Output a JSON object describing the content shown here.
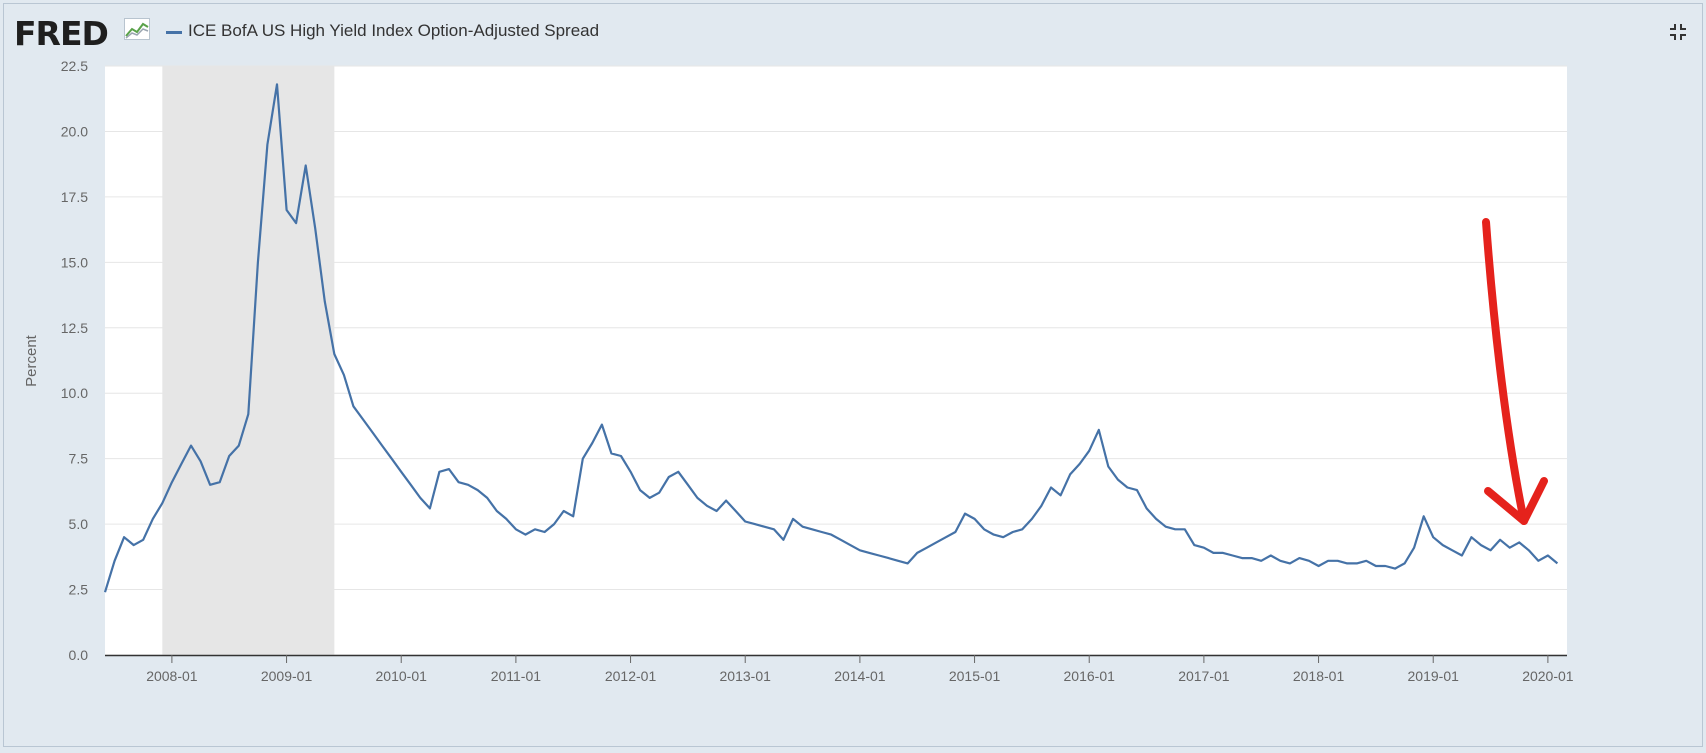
{
  "header": {
    "logo_text": "FRED",
    "logo_icon": "chart-line-icon",
    "fullscreen_icon": "fullscreen-icon"
  },
  "colors": {
    "series": "#4572a7",
    "recession": "#e6e6e6",
    "grid": "#e6e6e6",
    "annotation": "#e5221c"
  },
  "chart_data": {
    "type": "line",
    "title": "",
    "xlabel": "",
    "ylabel": "Percent",
    "ylim": [
      0,
      22.5
    ],
    "yticks": [
      "0.0",
      "2.5",
      "5.0",
      "7.5",
      "10.0",
      "12.5",
      "15.0",
      "17.5",
      "20.0",
      "22.5"
    ],
    "xlim": [
      "2007-06",
      "2020-03"
    ],
    "xticks": [
      "2008-01",
      "2009-01",
      "2010-01",
      "2011-01",
      "2012-01",
      "2013-01",
      "2014-01",
      "2015-01",
      "2016-01",
      "2017-01",
      "2018-01",
      "2019-01",
      "2020-01"
    ],
    "grid": true,
    "legend": "top-left",
    "recession_shading": {
      "start": "2007-12",
      "end": "2009-06"
    },
    "series": [
      {
        "name": "ICE BofA US High Yield Index Option-Adjusted Spread",
        "points": [
          [
            "2007-06",
            2.4
          ],
          [
            "2007-07",
            3.6
          ],
          [
            "2007-08",
            4.5
          ],
          [
            "2007-09",
            4.2
          ],
          [
            "2007-10",
            4.4
          ],
          [
            "2007-11",
            5.2
          ],
          [
            "2007-12",
            5.8
          ],
          [
            "2008-01",
            6.6
          ],
          [
            "2008-02",
            7.3
          ],
          [
            "2008-03",
            8.0
          ],
          [
            "2008-04",
            7.4
          ],
          [
            "2008-05",
            6.5
          ],
          [
            "2008-06",
            6.6
          ],
          [
            "2008-07",
            7.6
          ],
          [
            "2008-08",
            8.0
          ],
          [
            "2008-09",
            9.2
          ],
          [
            "2008-10",
            15.0
          ],
          [
            "2008-11",
            19.5
          ],
          [
            "2008-12",
            21.8
          ],
          [
            "2009-01",
            17.0
          ],
          [
            "2009-02",
            16.5
          ],
          [
            "2009-03",
            18.7
          ],
          [
            "2009-04",
            16.3
          ],
          [
            "2009-05",
            13.5
          ],
          [
            "2009-06",
            11.5
          ],
          [
            "2009-07",
            10.7
          ],
          [
            "2009-08",
            9.5
          ],
          [
            "2009-09",
            9.0
          ],
          [
            "2009-10",
            8.5
          ],
          [
            "2009-11",
            8.0
          ],
          [
            "2009-12",
            7.5
          ],
          [
            "2010-01",
            7.0
          ],
          [
            "2010-02",
            6.5
          ],
          [
            "2010-03",
            6.0
          ],
          [
            "2010-04",
            5.6
          ],
          [
            "2010-05",
            7.0
          ],
          [
            "2010-06",
            7.1
          ],
          [
            "2010-07",
            6.6
          ],
          [
            "2010-08",
            6.5
          ],
          [
            "2010-09",
            6.3
          ],
          [
            "2010-10",
            6.0
          ],
          [
            "2010-11",
            5.5
          ],
          [
            "2010-12",
            5.2
          ],
          [
            "2011-01",
            4.8
          ],
          [
            "2011-02",
            4.6
          ],
          [
            "2011-03",
            4.8
          ],
          [
            "2011-04",
            4.7
          ],
          [
            "2011-05",
            5.0
          ],
          [
            "2011-06",
            5.5
          ],
          [
            "2011-07",
            5.3
          ],
          [
            "2011-08",
            7.5
          ],
          [
            "2011-09",
            8.1
          ],
          [
            "2011-10",
            8.8
          ],
          [
            "2011-11",
            7.7
          ],
          [
            "2011-12",
            7.6
          ],
          [
            "2012-01",
            7.0
          ],
          [
            "2012-02",
            6.3
          ],
          [
            "2012-03",
            6.0
          ],
          [
            "2012-04",
            6.2
          ],
          [
            "2012-05",
            6.8
          ],
          [
            "2012-06",
            7.0
          ],
          [
            "2012-07",
            6.5
          ],
          [
            "2012-08",
            6.0
          ],
          [
            "2012-09",
            5.7
          ],
          [
            "2012-10",
            5.5
          ],
          [
            "2012-11",
            5.9
          ],
          [
            "2012-12",
            5.5
          ],
          [
            "2013-01",
            5.1
          ],
          [
            "2013-02",
            5.0
          ],
          [
            "2013-03",
            4.9
          ],
          [
            "2013-04",
            4.8
          ],
          [
            "2013-05",
            4.4
          ],
          [
            "2013-06",
            5.2
          ],
          [
            "2013-07",
            4.9
          ],
          [
            "2013-08",
            4.8
          ],
          [
            "2013-09",
            4.7
          ],
          [
            "2013-10",
            4.6
          ],
          [
            "2013-11",
            4.4
          ],
          [
            "2013-12",
            4.2
          ],
          [
            "2014-01",
            4.0
          ],
          [
            "2014-02",
            3.9
          ],
          [
            "2014-03",
            3.8
          ],
          [
            "2014-04",
            3.7
          ],
          [
            "2014-05",
            3.6
          ],
          [
            "2014-06",
            3.5
          ],
          [
            "2014-07",
            3.9
          ],
          [
            "2014-08",
            4.1
          ],
          [
            "2014-09",
            4.3
          ],
          [
            "2014-10",
            4.5
          ],
          [
            "2014-11",
            4.7
          ],
          [
            "2014-12",
            5.4
          ],
          [
            "2015-01",
            5.2
          ],
          [
            "2015-02",
            4.8
          ],
          [
            "2015-03",
            4.6
          ],
          [
            "2015-04",
            4.5
          ],
          [
            "2015-05",
            4.7
          ],
          [
            "2015-06",
            4.8
          ],
          [
            "2015-07",
            5.2
          ],
          [
            "2015-08",
            5.7
          ],
          [
            "2015-09",
            6.4
          ],
          [
            "2015-10",
            6.1
          ],
          [
            "2015-11",
            6.9
          ],
          [
            "2015-12",
            7.3
          ],
          [
            "2016-01",
            7.8
          ],
          [
            "2016-02",
            8.6
          ],
          [
            "2016-03",
            7.2
          ],
          [
            "2016-04",
            6.7
          ],
          [
            "2016-05",
            6.4
          ],
          [
            "2016-06",
            6.3
          ],
          [
            "2016-07",
            5.6
          ],
          [
            "2016-08",
            5.2
          ],
          [
            "2016-09",
            4.9
          ],
          [
            "2016-10",
            4.8
          ],
          [
            "2016-11",
            4.8
          ],
          [
            "2016-12",
            4.2
          ],
          [
            "2017-01",
            4.1
          ],
          [
            "2017-02",
            3.9
          ],
          [
            "2017-03",
            3.9
          ],
          [
            "2017-04",
            3.8
          ],
          [
            "2017-05",
            3.7
          ],
          [
            "2017-06",
            3.7
          ],
          [
            "2017-07",
            3.6
          ],
          [
            "2017-08",
            3.8
          ],
          [
            "2017-09",
            3.6
          ],
          [
            "2017-10",
            3.5
          ],
          [
            "2017-11",
            3.7
          ],
          [
            "2017-12",
            3.6
          ],
          [
            "2018-01",
            3.4
          ],
          [
            "2018-02",
            3.6
          ],
          [
            "2018-03",
            3.6
          ],
          [
            "2018-04",
            3.5
          ],
          [
            "2018-05",
            3.5
          ],
          [
            "2018-06",
            3.6
          ],
          [
            "2018-07",
            3.4
          ],
          [
            "2018-08",
            3.4
          ],
          [
            "2018-09",
            3.3
          ],
          [
            "2018-10",
            3.5
          ],
          [
            "2018-11",
            4.1
          ],
          [
            "2018-12",
            5.3
          ],
          [
            "2019-01",
            4.5
          ],
          [
            "2019-02",
            4.2
          ],
          [
            "2019-03",
            4.0
          ],
          [
            "2019-04",
            3.8
          ],
          [
            "2019-05",
            4.5
          ],
          [
            "2019-06",
            4.2
          ],
          [
            "2019-07",
            4.0
          ],
          [
            "2019-08",
            4.4
          ],
          [
            "2019-09",
            4.1
          ],
          [
            "2019-10",
            4.3
          ],
          [
            "2019-11",
            4.0
          ],
          [
            "2019-12",
            3.6
          ],
          [
            "2020-01",
            3.8
          ],
          [
            "2020-02",
            3.5
          ]
        ]
      }
    ]
  }
}
